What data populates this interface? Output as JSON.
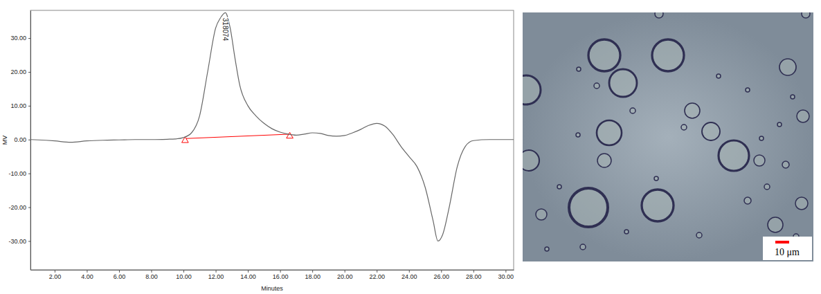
{
  "chart_data": {
    "type": "line",
    "x_label": "Minutes",
    "y_label": "MV",
    "xlim": [
      0.5,
      30.5
    ],
    "ylim": [
      -38.5,
      38.2
    ],
    "xticks": [
      {
        "value": 2,
        "label": "2.00"
      },
      {
        "value": 4,
        "label": "4.00"
      },
      {
        "value": 6,
        "label": "6.00"
      },
      {
        "value": 8,
        "label": "8.00"
      },
      {
        "value": 10,
        "label": "10.00"
      },
      {
        "value": 12,
        "label": "12.00"
      },
      {
        "value": 14,
        "label": "14.00"
      },
      {
        "value": 16,
        "label": "16.00"
      },
      {
        "value": 18,
        "label": "18.00"
      },
      {
        "value": 20,
        "label": "20.00"
      },
      {
        "value": 22,
        "label": "22.00"
      },
      {
        "value": 24,
        "label": "24.00"
      },
      {
        "value": 26,
        "label": "26.00"
      },
      {
        "value": 28,
        "label": "28.00"
      },
      {
        "value": 30,
        "label": "30.00"
      }
    ],
    "yticks": [
      {
        "value": -30,
        "label": "-30.00"
      },
      {
        "value": -20,
        "label": "-20.00"
      },
      {
        "value": -10,
        "label": "-10.00"
      },
      {
        "value": 0,
        "label": "0.00"
      },
      {
        "value": 10,
        "label": "10.00"
      },
      {
        "value": 20,
        "label": "20.00"
      },
      {
        "value": 30,
        "label": "30.00"
      }
    ],
    "grid": false,
    "x": [
      0.5,
      1,
      2,
      3,
      4,
      5,
      6,
      7,
      8,
      9,
      9.5,
      10,
      10.5,
      11,
      11.5,
      12,
      12.3,
      12.6,
      12.9,
      13.2,
      13.5,
      14,
      14.5,
      15,
      15.5,
      16,
      16.5,
      17,
      17.5,
      18,
      18.5,
      19,
      19.5,
      20,
      20.5,
      21,
      21.5,
      22,
      22.5,
      23,
      23.5,
      24,
      24.5,
      25,
      25.5,
      25.8,
      26.1,
      26.5,
      27,
      27.5,
      28,
      29,
      30,
      30.5
    ],
    "series": [
      {
        "color": "#666666",
        "values": [
          0,
          -0.1,
          -0.4,
          -0.8,
          -0.4,
          -0.2,
          -0.1,
          0,
          0,
          0.1,
          0.2,
          0.6,
          2,
          7,
          20,
          33,
          36,
          37.5,
          33,
          24,
          16,
          10,
          7,
          4.8,
          3.2,
          2.2,
          1.6,
          1.3,
          1.6,
          2,
          1.8,
          1.2,
          1,
          1.2,
          2,
          3,
          4.2,
          4.8,
          4,
          1.5,
          -2,
          -5,
          -8,
          -14,
          -24,
          -30,
          -28,
          -20,
          -8,
          -2,
          -0.3,
          0,
          0,
          0
        ]
      }
    ],
    "baseline": {
      "x": [
        10.1,
        16.6
      ],
      "values": [
        0.3,
        1.6
      ],
      "color": "#ff0000",
      "marker": "triangle"
    },
    "annotations": [
      {
        "text": "318074",
        "x": 12.6,
        "y": 36
      }
    ]
  },
  "micrograph": {
    "scale_bar_label": "10 μm",
    "scale_bar_color": "#ff0000"
  }
}
